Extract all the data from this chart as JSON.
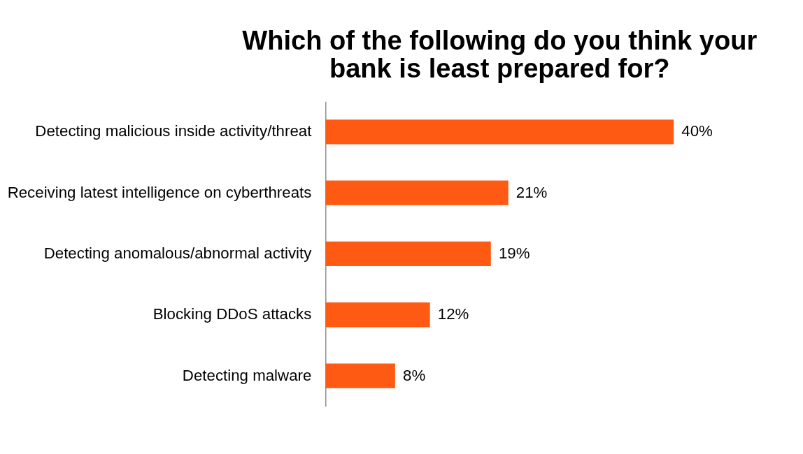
{
  "chart_data": {
    "type": "bar",
    "orientation": "horizontal",
    "title": [
      "Which of the following do you think your",
      "bank is least prepared for?"
    ],
    "categories": [
      "Detecting malicious inside activity/threat",
      "Receiving latest intelligence on cyberthreats",
      "Detecting anomalous/abnormal activity",
      "Blocking DDoS attacks",
      "Detecting malware"
    ],
    "values": [
      40,
      21,
      19,
      12,
      8
    ],
    "value_labels": [
      "40%",
      "21%",
      "19%",
      "12%",
      "8%"
    ],
    "color": "#fe5a13"
  }
}
